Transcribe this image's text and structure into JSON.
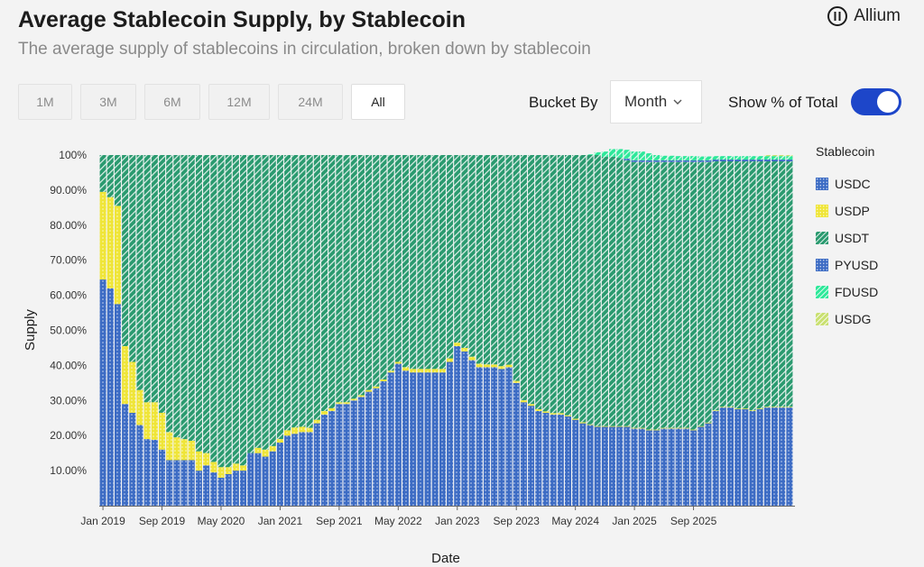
{
  "header": {
    "title": "Average Stablecoin Supply, by Stablecoin",
    "subtitle": "The average supply of stablecoins in circulation, broken down by stablecoin",
    "brand": "Allium"
  },
  "controls": {
    "ranges": [
      {
        "label": "1M",
        "active": false
      },
      {
        "label": "3M",
        "active": false
      },
      {
        "label": "6M",
        "active": false
      },
      {
        "label": "12M",
        "active": false
      },
      {
        "label": "24M",
        "active": false
      },
      {
        "label": "All",
        "active": true
      }
    ],
    "bucket_label": "Bucket By",
    "bucket_value": "Month",
    "pct_label": "Show % of Total",
    "pct_on": true
  },
  "chart_data": {
    "type": "bar",
    "stacked": true,
    "xlabel": "Date",
    "ylabel": "Supply",
    "ylim": [
      0,
      100
    ],
    "yticks": [
      "100%",
      "90.00%",
      "80.00%",
      "70.00%",
      "60.00%",
      "50.00%",
      "40.00%",
      "30.00%",
      "20.00%",
      "10.00%"
    ],
    "xticks": [
      "Jan 2019",
      "Sep 2019",
      "May 2020",
      "Jan 2021",
      "Sep 2021",
      "May 2022",
      "Jan 2023",
      "Sep 2023",
      "May 2024",
      "Jan 2025",
      "Sep 2025"
    ],
    "start_month": "2019-01",
    "legend_title": "Stablecoin",
    "legend_position": "right",
    "series": [
      {
        "name": "USDC",
        "color": "#3d6cc4",
        "pattern": "dots",
        "values": [
          64.5,
          62,
          57.5,
          29,
          26.5,
          23,
          19,
          18.8,
          16,
          13,
          13,
          13,
          13,
          10,
          11.5,
          9.5,
          8,
          9,
          10,
          10,
          15,
          15,
          14,
          15.5,
          18,
          20,
          20.5,
          21,
          21,
          23.5,
          26,
          27,
          29,
          29,
          30,
          31,
          32.5,
          33.5,
          35.5,
          38,
          40.5,
          38.5,
          38,
          38,
          38,
          38,
          38,
          41,
          45.5,
          44,
          41.5,
          39.5,
          39.5,
          39.5,
          39,
          39.5,
          35,
          29.5,
          28.5,
          27,
          26.5,
          26,
          26,
          25.5,
          24.5,
          23.5,
          23,
          22.5,
          22.5,
          22.5,
          22.5,
          22.5,
          22,
          22,
          21.5,
          21.5,
          22,
          22,
          22,
          22,
          21.5,
          22.5,
          23.5,
          27,
          28,
          28,
          27.5,
          27.5,
          27,
          27.5,
          28,
          28,
          28,
          28
        ]
      },
      {
        "name": "USDP",
        "color": "#efe538",
        "pattern": "dots",
        "values": [
          25,
          26,
          28,
          16.5,
          14.5,
          10,
          10.5,
          10.7,
          10.5,
          8,
          6.5,
          6,
          5.5,
          5.5,
          3.5,
          3,
          3,
          2,
          2,
          1.5,
          0,
          1.5,
          2,
          1.5,
          1,
          1.5,
          1.8,
          1.5,
          1.2,
          1,
          1,
          0.8,
          0.5,
          0.5,
          0.5,
          0.5,
          0.5,
          0.5,
          0.5,
          0.5,
          0.5,
          1,
          1,
          1,
          1,
          1,
          1,
          1,
          1,
          1,
          1,
          1,
          0.8,
          0.8,
          0.8,
          0.7,
          0.6,
          0.6,
          0.5,
          0.5,
          0.4,
          0.4,
          0.4,
          0.3,
          0.3,
          0.3,
          0.2,
          0.2,
          0.2,
          0.2,
          0.2,
          0.2,
          0.2,
          0.2,
          0.2,
          0.2,
          0.2,
          0.2,
          0.2,
          0.2,
          0.2,
          0.2,
          0.2,
          0.2,
          0.2,
          0.2,
          0.2,
          0.2,
          0.2,
          0.2,
          0.2,
          0.2,
          0.2,
          0.2
        ]
      },
      {
        "name": "USDT",
        "color": "#2a9a6f",
        "pattern": "hatch",
        "values": [
          10.5,
          12,
          14.5,
          54.5,
          59,
          67,
          70.5,
          70.5,
          73.5,
          79,
          80.5,
          81,
          81.5,
          84.5,
          85,
          87.5,
          89,
          89,
          88,
          88.5,
          85,
          83.5,
          84,
          83,
          81,
          78.5,
          77.7,
          77.5,
          77.8,
          75.5,
          73,
          72.2,
          70.5,
          70.5,
          69.5,
          68.5,
          67,
          66,
          64,
          61.5,
          59,
          60.5,
          61,
          61,
          61,
          61,
          61,
          58,
          53.5,
          55,
          57.5,
          59.5,
          59.7,
          59.7,
          60.2,
          59.8,
          64.4,
          69.9,
          71,
          72.5,
          73.1,
          73.6,
          73.6,
          74.2,
          75.2,
          76.2,
          76.8,
          77.3,
          76.8,
          76.8,
          76.5,
          75.8,
          75.8,
          75.8,
          76.3,
          76.3,
          75.8,
          75.8,
          75.8,
          75.8,
          76.3,
          75.3,
          74.3,
          71,
          70,
          70,
          70.5,
          70.5,
          71,
          70.5,
          70,
          70,
          70,
          70
        ]
      },
      {
        "name": "PYUSD",
        "color": "#3d6cc4",
        "pattern": "dots",
        "values": [
          0,
          0,
          0,
          0,
          0,
          0,
          0,
          0,
          0,
          0,
          0,
          0,
          0,
          0,
          0,
          0,
          0,
          0,
          0,
          0,
          0,
          0,
          0,
          0,
          0,
          0,
          0,
          0,
          0,
          0,
          0,
          0,
          0,
          0,
          0,
          0,
          0,
          0,
          0,
          0,
          0,
          0,
          0,
          0,
          0,
          0,
          0,
          0,
          0,
          0,
          0,
          0,
          0,
          0,
          0,
          0,
          0,
          0,
          0,
          0,
          0,
          0,
          0,
          0,
          0,
          0,
          0,
          0,
          0,
          0,
          0,
          0.5,
          0.5,
          0.5,
          0.5,
          0.5,
          0.5,
          0.5,
          0.5,
          0.5,
          0.5,
          0.5,
          0.5,
          0.5,
          0.5,
          0.5,
          0.5,
          0.5,
          0.5,
          0.5,
          0.5,
          0.5,
          0.5,
          0.5
        ]
      },
      {
        "name": "FDUSD",
        "color": "#2ee89a",
        "pattern": "hatch",
        "values": [
          0,
          0,
          0,
          0,
          0,
          0,
          0,
          0,
          0,
          0,
          0,
          0,
          0,
          0,
          0,
          0,
          0,
          0,
          0,
          0,
          0,
          0,
          0,
          0,
          0,
          0,
          0,
          0,
          0,
          0,
          0,
          0,
          0,
          0,
          0,
          0,
          0,
          0,
          0,
          0,
          0,
          0,
          0,
          0,
          0,
          0,
          0,
          0,
          0,
          0,
          0,
          0,
          0,
          0,
          0,
          0,
          0,
          0,
          0,
          0,
          0,
          0,
          0,
          0,
          0,
          0,
          0.2,
          0.8,
          1.5,
          2.2,
          2.5,
          2.5,
          2.5,
          2.5,
          2,
          1.5,
          1.3,
          1.3,
          1.2,
          1.2,
          1.2,
          1.1,
          1.1,
          1,
          1,
          1,
          1,
          1,
          1,
          1,
          1,
          1,
          1,
          1
        ]
      },
      {
        "name": "USDG",
        "color": "#c9e070",
        "pattern": "hatch",
        "values": [
          0,
          0,
          0,
          0,
          0,
          0,
          0,
          0,
          0,
          0,
          0,
          0,
          0,
          0,
          0,
          0,
          0,
          0,
          0,
          0,
          0,
          0,
          0,
          0,
          0,
          0,
          0,
          0,
          0,
          0,
          0,
          0,
          0,
          0,
          0,
          0,
          0,
          0,
          0,
          0,
          0,
          0,
          0,
          0,
          0,
          0,
          0,
          0,
          0,
          0,
          0,
          0,
          0,
          0,
          0,
          0,
          0,
          0,
          0,
          0,
          0,
          0,
          0,
          0,
          0,
          0,
          0,
          0,
          0,
          0,
          0,
          0,
          0,
          0,
          0,
          0,
          0,
          0,
          0,
          0,
          0,
          0,
          0,
          0,
          0,
          0,
          0,
          0,
          0,
          0,
          0.3,
          0.3,
          0.3,
          0.3
        ]
      }
    ]
  }
}
